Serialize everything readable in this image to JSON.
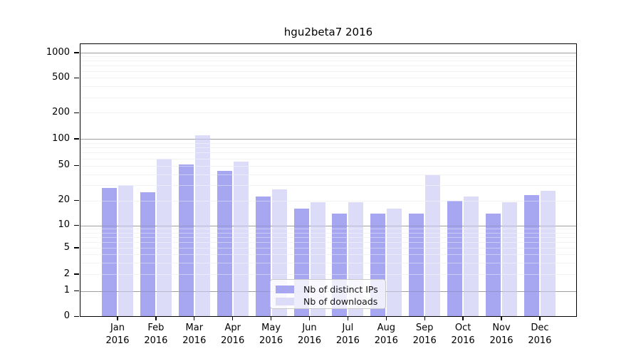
{
  "chart_data": {
    "type": "bar",
    "title": "hgu2beta7 2016",
    "categories": [
      "Jan",
      "Feb",
      "Mar",
      "Apr",
      "May",
      "Jun",
      "Jul",
      "Aug",
      "Sep",
      "Oct",
      "Nov",
      "Dec"
    ],
    "category_year": "2016",
    "series": [
      {
        "name": "Nb of distinct IPs",
        "color": "#a6a6f1",
        "values": [
          28,
          25,
          52,
          44,
          22,
          16,
          14,
          14,
          14,
          20,
          14,
          23
        ]
      },
      {
        "name": "Nb of downloads",
        "color": "#dcdcf8",
        "values": [
          30,
          60,
          110,
          56,
          27,
          19,
          19,
          16,
          39,
          22,
          19,
          26
        ]
      }
    ],
    "y_axis": {
      "scale": "log",
      "ticks": [
        0,
        1,
        2,
        5,
        10,
        20,
        50,
        100,
        200,
        500,
        1000
      ],
      "major_gridlines": [
        1,
        10,
        100,
        1000
      ],
      "minor_gridlines": [
        2,
        3,
        4,
        5,
        6,
        7,
        8,
        9,
        20,
        30,
        40,
        50,
        60,
        70,
        80,
        90,
        200,
        300,
        400,
        500,
        600,
        700,
        800,
        900
      ],
      "range": [
        0,
        1000
      ]
    },
    "legend_position": "bottom-center",
    "grid": true
  }
}
